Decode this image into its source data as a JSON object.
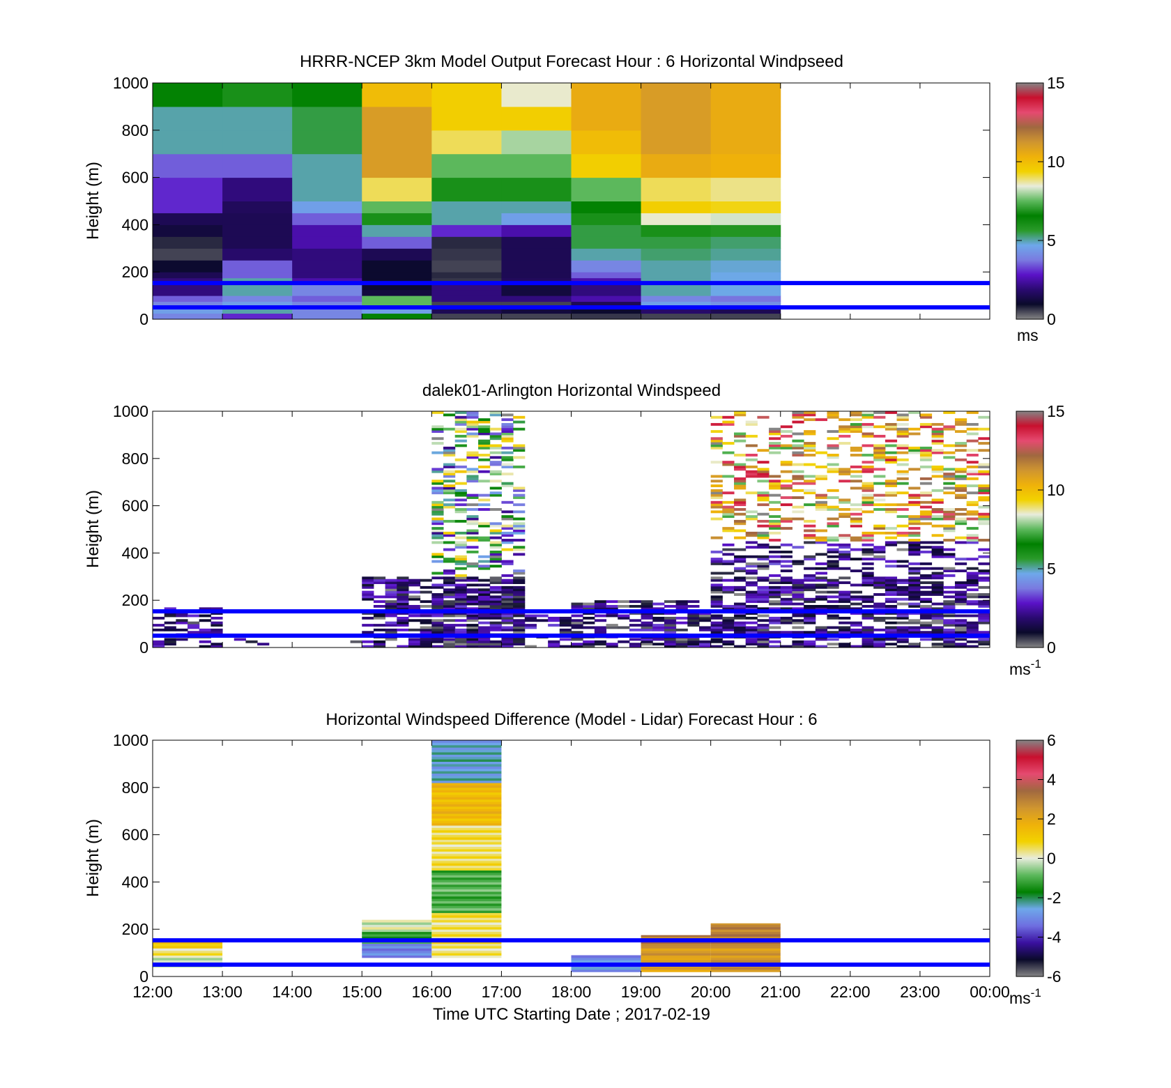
{
  "figure": {
    "xlabel": "Time UTC  Starting Date ; 2017-02-19"
  },
  "colors": {
    "reference_lines": "#0000ff",
    "speed_colormap": [
      "#858585",
      "#0a0a2a",
      "#2a0a70",
      "#5a12c8",
      "#7a7ae0",
      "#6ea8ea",
      "#2a9a2a",
      "#008000",
      "#5cb85c",
      "#e8ecdc",
      "#f2d200",
      "#efb10a",
      "#cf9530",
      "#a06840",
      "#e54a70",
      "#c8102e",
      "#858585"
    ],
    "diff_colormap": [
      "#858585",
      "#0a0a2a",
      "#3a10a0",
      "#6e6ee0",
      "#6ea8ea",
      "#008000",
      "#5cb85c",
      "#e8ecdc",
      "#f2d200",
      "#efb10a",
      "#cf9530",
      "#a06840",
      "#e54a70",
      "#c8102e",
      "#858585"
    ]
  },
  "chart_data": [
    {
      "type": "heatmap",
      "title": "HRRR-NCEP 3km Model Output   Forecast Hour : 6 Horizontal Windpseed",
      "ylabel": "Height (m)",
      "x_ticks": [
        "12:00",
        "13:00",
        "14:00",
        "15:00",
        "16:00",
        "17:00",
        "18:00",
        "19:00",
        "20:00",
        "21:00",
        "22:00",
        "23:00",
        "00:00"
      ],
      "ylim": [
        0,
        1000
      ],
      "y_ticks": [
        "0",
        "200",
        "400",
        "600",
        "800",
        "1000"
      ],
      "colorbar": {
        "label": "ms",
        "superscript": "",
        "ticks": [
          "0",
          "5",
          "10",
          "15"
        ],
        "range": [
          0,
          15
        ]
      },
      "reference_lines_m": [
        50,
        153
      ],
      "model_hours": [
        "12:00",
        "13:00",
        "14:00",
        "15:00",
        "16:00",
        "17:00",
        "18:00",
        "19:00",
        "20:00"
      ],
      "levels_m": [
        0,
        25,
        50,
        75,
        100,
        125,
        150,
        175,
        200,
        250,
        300,
        350,
        400,
        450,
        500,
        550,
        600,
        700,
        800,
        900,
        1000
      ],
      "speed_ms": [
        [
          4.0,
          3.0,
          4.0,
          6.5,
          0.5,
          0.5,
          0.6,
          0.5
        ],
        [
          4.5,
          5.0,
          4.0,
          4.5,
          1.5,
          1.2,
          1.0,
          1.8
        ],
        [
          4.0,
          4.5,
          4.0,
          7.5,
          0.5,
          0.5,
          1.5,
          4.5
        ],
        [
          3.5,
          4.0,
          3.5,
          7.5,
          2.0,
          2.0,
          2.5,
          4.0
        ],
        [
          2.0,
          5.0,
          4.0,
          1.2,
          2.0,
          1.2,
          2.0,
          5.0
        ],
        [
          2.0,
          5.0,
          4.0,
          1.0,
          2.0,
          1.2,
          2.0,
          5.0
        ],
        [
          2.0,
          5.0,
          2.5,
          1.0,
          0.6,
          1.6,
          2.5,
          5.0
        ],
        [
          1.5,
          3.5,
          2.0,
          1.0,
          0.7,
          1.5,
          3.5,
          5.0
        ],
        [
          1.0,
          3.5,
          2.0,
          1.0,
          0.5,
          1.5,
          4.0,
          5.0
        ],
        [
          0.5,
          1.8,
          2.0,
          1.5,
          0.6,
          1.5,
          5.0,
          5.3
        ],
        [
          0.7,
          1.5,
          2.5,
          3.5,
          0.7,
          1.5,
          5.5,
          5.5
        ],
        [
          1.2,
          1.5,
          2.5,
          5.0,
          3.0,
          2.5,
          5.5,
          6.0
        ],
        [
          1.5,
          1.5,
          3.5,
          6.0,
          5.0,
          4.5,
          6.0,
          8.5
        ],
        [
          3.0,
          1.6,
          4.5,
          7.5,
          5.0,
          5.0,
          6.5,
          9.5
        ],
        [
          3.0,
          2.0,
          5.0,
          9.0,
          6.0,
          6.0,
          7.5,
          9.0
        ],
        [
          3.0,
          2.0,
          5.0,
          9.0,
          6.0,
          6.0,
          7.5,
          9.0
        ],
        [
          3.5,
          3.5,
          5.0,
          11.0,
          7.5,
          7.5,
          9.5,
          10.5
        ],
        [
          5.0,
          5.0,
          5.5,
          11.0,
          9.0,
          8.0,
          10.0,
          11.0
        ],
        [
          5.0,
          5.0,
          5.5,
          11.0,
          9.5,
          9.5,
          10.5,
          11.0
        ],
        [
          6.5,
          6.0,
          6.5,
          10.0,
          9.5,
          8.5,
          10.5,
          11.0
        ]
      ]
    },
    {
      "type": "heatmap",
      "title": "dalek01-Arlington  Horizontal Windspeed",
      "ylabel": "Height (m)",
      "x_ticks": [
        "12:00",
        "13:00",
        "14:00",
        "15:00",
        "16:00",
        "17:00",
        "18:00",
        "19:00",
        "20:00",
        "21:00",
        "22:00",
        "23:00",
        "00:00"
      ],
      "ylim": [
        0,
        1000
      ],
      "y_ticks": [
        "0",
        "200",
        "400",
        "600",
        "800",
        "1000"
      ],
      "colorbar": {
        "label": "ms",
        "superscript": "-1",
        "ticks": [
          "0",
          "5",
          "10",
          "15"
        ],
        "range": [
          0,
          15
        ]
      },
      "reference_lines_m": [
        50,
        153
      ],
      "observation_note": "lidar retrievals scattered between 0 and 1000 m; dense low-level 1-3 ms-1 coverage 15:00-00:00, 7-14 ms-1 aloft after 20:00"
    },
    {
      "type": "heatmap",
      "title": "Horizontal Windspeed Difference (Model - Lidar) Forecast Hour : 6",
      "ylabel": "Height (m)",
      "x_ticks": [
        "12:00",
        "13:00",
        "14:00",
        "15:00",
        "16:00",
        "17:00",
        "18:00",
        "19:00",
        "20:00",
        "21:00",
        "22:00",
        "23:00",
        "00:00"
      ],
      "ylim": [
        0,
        1000
      ],
      "y_ticks": [
        "0",
        "200",
        "400",
        "600",
        "800",
        "1000"
      ],
      "colorbar": {
        "label": "ms",
        "superscript": "-1",
        "ticks": [
          "-6",
          "-4",
          "-2",
          "0",
          "2",
          "4",
          "6"
        ],
        "range": [
          -6,
          6
        ]
      },
      "reference_lines_m": [
        50,
        153
      ],
      "columns": [
        {
          "start": "12:00",
          "end": "13:00",
          "bottom_m": 40,
          "top_m": 150,
          "diff_ms": [
            -0.5,
            0.5,
            1.0
          ]
        },
        {
          "start": "15:00",
          "end": "16:00",
          "bottom_m": 80,
          "top_m": 240,
          "diff_ms": [
            -3.0,
            -1.5,
            0.0
          ]
        },
        {
          "start": "16:00",
          "end": "17:00",
          "bottom_m": 80,
          "top_m": 1000,
          "diff_ms": [
            0.5,
            -1.0,
            0.5,
            1.5,
            -2.5
          ]
        },
        {
          "start": "18:00",
          "end": "19:00",
          "bottom_m": 20,
          "top_m": 90,
          "diff_ms": [
            -3.0
          ]
        },
        {
          "start": "19:00",
          "end": "20:00",
          "bottom_m": 20,
          "top_m": 175,
          "diff_ms": [
            2.0,
            2.5,
            3.0
          ]
        },
        {
          "start": "20:00",
          "end": "21:00",
          "bottom_m": 20,
          "top_m": 225,
          "diff_ms": [
            2.5,
            3.0
          ]
        }
      ]
    }
  ]
}
